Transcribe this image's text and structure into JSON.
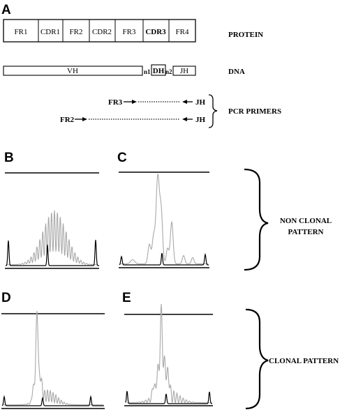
{
  "panel_labels": {
    "a": "A",
    "b": "B",
    "c": "C",
    "d": "D",
    "e": "E"
  },
  "protein": {
    "label": "PROTEIN",
    "segments": [
      "FR1",
      "CDR1",
      "FR2",
      "CDR2",
      "FR3",
      "CDR3",
      "FR4"
    ]
  },
  "dna": {
    "label": "DNA",
    "vh": "VH",
    "n1": "n1",
    "dh": "DH",
    "n2": "n2",
    "jh": "JH"
  },
  "pcr": {
    "label": "PCR PRIMERS",
    "fr3": "FR3",
    "fr2": "FR2",
    "jh_top": "JH",
    "jh_bottom": "JH"
  },
  "patterns": {
    "non_clonal_line1": "NON CLONAL",
    "non_clonal_line2": "PATTERN",
    "clonal": "CLONAL PATTERN"
  },
  "colors": {
    "trace_main": "#a9a9a9",
    "trace_marker": "#000000",
    "ink": "#000000"
  }
}
